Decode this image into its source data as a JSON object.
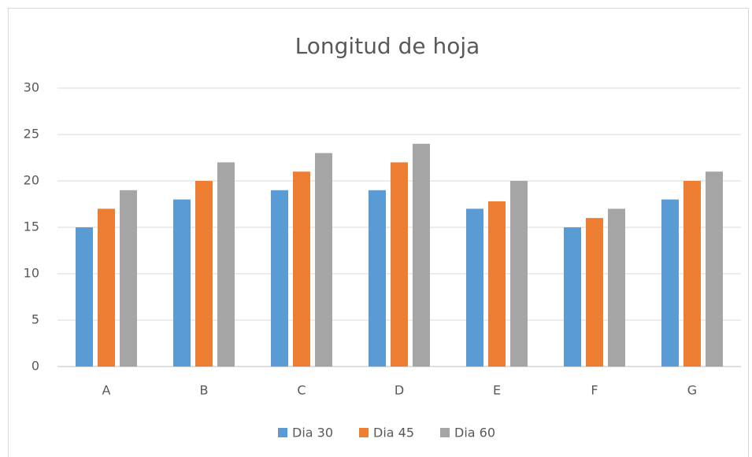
{
  "chart_data": {
    "type": "bar",
    "title": "Longitud de hoja",
    "categories": [
      "A",
      "B",
      "C",
      "D",
      "E",
      "F",
      "G"
    ],
    "series": [
      {
        "name": "Dia 30",
        "color": "#5b9bd5",
        "values": [
          15,
          18,
          19,
          19,
          17,
          15,
          18
        ]
      },
      {
        "name": "Dia 45",
        "color": "#ed7d31",
        "values": [
          17,
          20,
          21,
          22,
          17.8,
          16,
          20
        ]
      },
      {
        "name": "Dia 60",
        "color": "#a5a5a5",
        "values": [
          19,
          22,
          23,
          24,
          20,
          17,
          21
        ]
      }
    ],
    "ylim": [
      0,
      30
    ],
    "yticks": [
      0,
      5,
      10,
      15,
      20,
      25,
      30
    ],
    "grid": true,
    "legend": "bottom"
  }
}
